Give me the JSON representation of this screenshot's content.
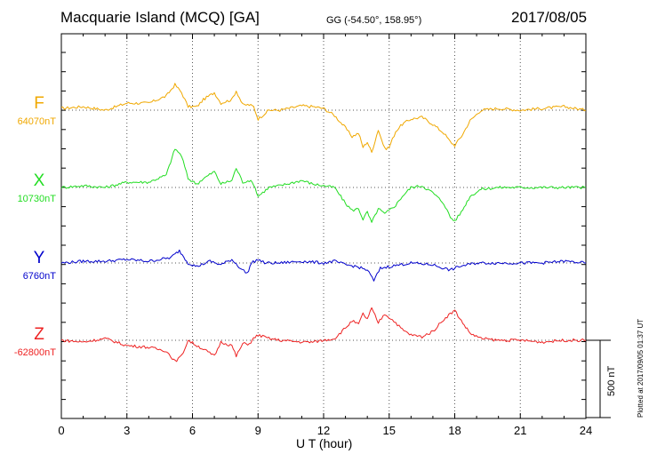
{
  "header": {
    "station": "Macquarie Island (MCQ)  [GA]",
    "coords": "GG (-54.50°, 158.95°)",
    "date": "2017/08/05"
  },
  "footer": "Plotted at 2017/09/05 01:37  UT",
  "scale_bar_label": "500 nT",
  "chart_data": {
    "type": "line",
    "xlabel": "U T (hour)",
    "xlim": [
      0,
      24
    ],
    "xticks": [
      "0",
      "3",
      "6",
      "9",
      "12",
      "15",
      "18",
      "21",
      "24"
    ],
    "grid": true,
    "units": "nT",
    "scale_bar_nT": 500,
    "series": [
      {
        "name": "F",
        "baseline_label": "64070nT",
        "color": "#f0a800",
        "points": [
          [
            0,
            2
          ],
          [
            1,
            4
          ],
          [
            2,
            0
          ],
          [
            3,
            8
          ],
          [
            4,
            8
          ],
          [
            4.8,
            16
          ],
          [
            5.2,
            29
          ],
          [
            5.5,
            20
          ],
          [
            5.8,
            4
          ],
          [
            6.2,
            4
          ],
          [
            6.5,
            12
          ],
          [
            7,
            20
          ],
          [
            7.3,
            8
          ],
          [
            7.8,
            12
          ],
          [
            8,
            22
          ],
          [
            8.3,
            6
          ],
          [
            8.6,
            6
          ],
          [
            8.8,
            4
          ],
          [
            9,
            -10
          ],
          [
            9.5,
            0
          ],
          [
            10,
            0
          ],
          [
            11,
            5
          ],
          [
            11.5,
            4
          ],
          [
            12,
            2
          ],
          [
            12.5,
            -6
          ],
          [
            13,
            -20
          ],
          [
            13.3,
            -30
          ],
          [
            13.6,
            -26
          ],
          [
            13.8,
            -42
          ],
          [
            14,
            -36
          ],
          [
            14.2,
            -48
          ],
          [
            14.5,
            -22
          ],
          [
            14.8,
            -44
          ],
          [
            15,
            -42
          ],
          [
            15.3,
            -24
          ],
          [
            15.6,
            -16
          ],
          [
            16,
            -10
          ],
          [
            16.5,
            -8
          ],
          [
            17,
            -16
          ],
          [
            17.5,
            -26
          ],
          [
            17.8,
            -36
          ],
          [
            18,
            -40
          ],
          [
            18.3,
            -30
          ],
          [
            18.7,
            -12
          ],
          [
            19.2,
            0
          ],
          [
            20,
            2
          ],
          [
            21,
            0
          ],
          [
            22,
            2
          ],
          [
            23,
            4
          ],
          [
            24,
            0
          ]
        ]
      },
      {
        "name": "X",
        "baseline_label": "10730nT",
        "color": "#22dd22",
        "points": [
          [
            0,
            0
          ],
          [
            1,
            2
          ],
          [
            2,
            0
          ],
          [
            3,
            6
          ],
          [
            4,
            6
          ],
          [
            4.8,
            14
          ],
          [
            5.2,
            44
          ],
          [
            5.5,
            36
          ],
          [
            5.8,
            10
          ],
          [
            6.2,
            4
          ],
          [
            6.5,
            10
          ],
          [
            7,
            18
          ],
          [
            7.3,
            4
          ],
          [
            7.8,
            8
          ],
          [
            8,
            22
          ],
          [
            8.3,
            6
          ],
          [
            8.6,
            8
          ],
          [
            8.8,
            4
          ],
          [
            9,
            -10
          ],
          [
            9.5,
            0
          ],
          [
            10,
            2
          ],
          [
            11,
            8
          ],
          [
            11.5,
            4
          ],
          [
            12,
            2
          ],
          [
            12.5,
            0
          ],
          [
            13,
            -18
          ],
          [
            13.3,
            -26
          ],
          [
            13.6,
            -24
          ],
          [
            13.8,
            -36
          ],
          [
            14,
            -28
          ],
          [
            14.2,
            -40
          ],
          [
            14.5,
            -24
          ],
          [
            14.8,
            -30
          ],
          [
            15,
            -26
          ],
          [
            15.3,
            -20
          ],
          [
            15.6,
            -10
          ],
          [
            16,
            0
          ],
          [
            16.5,
            2
          ],
          [
            17,
            -6
          ],
          [
            17.5,
            -18
          ],
          [
            17.8,
            -34
          ],
          [
            18,
            -38
          ],
          [
            18.3,
            -28
          ],
          [
            18.7,
            -10
          ],
          [
            19.2,
            -2
          ],
          [
            20,
            0
          ],
          [
            21,
            0
          ],
          [
            22,
            0
          ],
          [
            23,
            0
          ],
          [
            24,
            0
          ]
        ]
      },
      {
        "name": "Y",
        "baseline_label": "6760nT",
        "color": "#0000cc",
        "points": [
          [
            0,
            0
          ],
          [
            1,
            2
          ],
          [
            2,
            2
          ],
          [
            3,
            4
          ],
          [
            4,
            2
          ],
          [
            5,
            6
          ],
          [
            5.4,
            14
          ],
          [
            5.8,
            0
          ],
          [
            6.2,
            -4
          ],
          [
            6.8,
            2
          ],
          [
            7.3,
            -2
          ],
          [
            7.8,
            4
          ],
          [
            8.2,
            -6
          ],
          [
            8.5,
            -12
          ],
          [
            8.7,
            0
          ],
          [
            9,
            4
          ],
          [
            9.3,
            0
          ],
          [
            10,
            0
          ],
          [
            11,
            2
          ],
          [
            12,
            0
          ],
          [
            12.5,
            2
          ],
          [
            13,
            -2
          ],
          [
            13.5,
            -4
          ],
          [
            14,
            -8
          ],
          [
            14.3,
            -20
          ],
          [
            14.6,
            -6
          ],
          [
            15,
            -4
          ],
          [
            16,
            0
          ],
          [
            17,
            -2
          ],
          [
            17.5,
            -6
          ],
          [
            17.8,
            -8
          ],
          [
            18.2,
            -4
          ],
          [
            19,
            0
          ],
          [
            20,
            0
          ],
          [
            21,
            0
          ],
          [
            22,
            0
          ],
          [
            23,
            2
          ],
          [
            24,
            0
          ]
        ]
      },
      {
        "name": "Z",
        "baseline_label": "-62800nT",
        "color": "#ee2222",
        "points": [
          [
            0,
            0
          ],
          [
            1,
            -2
          ],
          [
            2,
            2
          ],
          [
            3,
            -6
          ],
          [
            4,
            -8
          ],
          [
            4.8,
            -12
          ],
          [
            5.2,
            -24
          ],
          [
            5.5,
            -18
          ],
          [
            5.8,
            0
          ],
          [
            6.2,
            -6
          ],
          [
            6.5,
            -10
          ],
          [
            7,
            -18
          ],
          [
            7.3,
            -2
          ],
          [
            7.8,
            -6
          ],
          [
            8,
            -18
          ],
          [
            8.3,
            -4
          ],
          [
            8.6,
            -4
          ],
          [
            8.8,
            2
          ],
          [
            9,
            6
          ],
          [
            9.5,
            2
          ],
          [
            10,
            0
          ],
          [
            11,
            -2
          ],
          [
            11.5,
            -2
          ],
          [
            12,
            0
          ],
          [
            12.5,
            2
          ],
          [
            13,
            14
          ],
          [
            13.3,
            22
          ],
          [
            13.6,
            18
          ],
          [
            13.8,
            30
          ],
          [
            14,
            24
          ],
          [
            14.2,
            36
          ],
          [
            14.5,
            20
          ],
          [
            14.8,
            30
          ],
          [
            15,
            26
          ],
          [
            15.3,
            20
          ],
          [
            15.6,
            12
          ],
          [
            16,
            6
          ],
          [
            16.5,
            4
          ],
          [
            17,
            10
          ],
          [
            17.5,
            24
          ],
          [
            17.8,
            30
          ],
          [
            18,
            34
          ],
          [
            18.3,
            22
          ],
          [
            18.7,
            8
          ],
          [
            19.2,
            2
          ],
          [
            20,
            0
          ],
          [
            21,
            0
          ],
          [
            22,
            -2
          ],
          [
            23,
            0
          ],
          [
            24,
            0
          ]
        ]
      }
    ]
  }
}
